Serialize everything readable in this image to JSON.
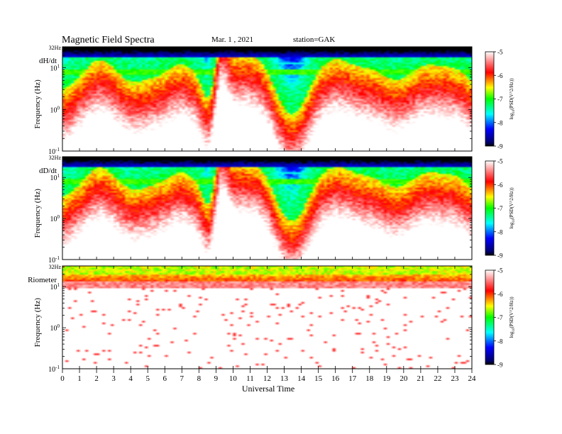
{
  "header": {
    "title": "Magnetic  Field  Spectra",
    "date": "Mar. 1  , 2021",
    "station": "station=GAK"
  },
  "chart_data": [
    {
      "type": "heatmap",
      "panel_label": "dH/dt",
      "top_label": "32Hz",
      "ylabel": "Frequency  (Hz)",
      "yscale": "log",
      "y_ticks": [
        {
          "base": "10",
          "exp": "1"
        },
        {
          "base": "10",
          "exp": "0"
        },
        {
          "base": "10",
          "exp": "-1"
        }
      ],
      "ylim": [
        0.1,
        32
      ]
    },
    {
      "type": "heatmap",
      "panel_label": "dD/dt",
      "top_label": "32Hz",
      "ylabel": "Frequency  (Hz)",
      "yscale": "log",
      "y_ticks": [
        {
          "base": "10",
          "exp": "1"
        },
        {
          "base": "10",
          "exp": "0"
        },
        {
          "base": "10",
          "exp": "-1"
        }
      ],
      "ylim": [
        0.1,
        32
      ]
    },
    {
      "type": "heatmap",
      "panel_label": "Riometer",
      "top_label": "32Hz",
      "ylabel": "Frequency  (Hz)",
      "yscale": "log",
      "y_ticks": [
        {
          "base": "10",
          "exp": "1"
        },
        {
          "base": "10",
          "exp": "0"
        },
        {
          "base": "10",
          "exp": "-1"
        }
      ],
      "ylim": [
        0.1,
        32
      ]
    }
  ],
  "xaxis": {
    "xlabel": "Universal  Time",
    "xlim": [
      0,
      24
    ],
    "ticks": [
      "0",
      "1",
      "2",
      "3",
      "4",
      "5",
      "6",
      "7",
      "8",
      "9",
      "10",
      "11",
      "12",
      "13",
      "14",
      "15",
      "16",
      "17",
      "18",
      "19",
      "20",
      "21",
      "22",
      "23",
      "24"
    ]
  },
  "colorbar": {
    "label": "log10(PSD(V^2/Hz))",
    "ticks": [
      "-5",
      "-6",
      "-7",
      "-8",
      "-9"
    ],
    "range": [
      -9,
      -5
    ],
    "colors": [
      "#000000",
      "#0000ff",
      "#00ffff",
      "#00ff00",
      "#ffff00",
      "#ff0000",
      "#ffffff"
    ]
  }
}
